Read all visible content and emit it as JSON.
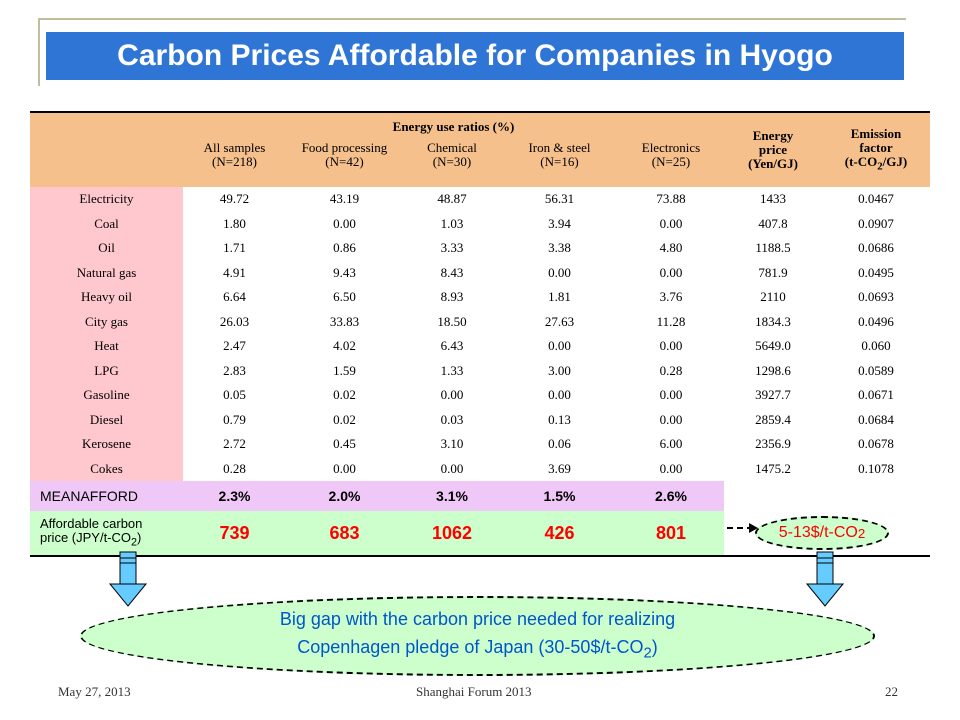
{
  "slide": {
    "title": "Carbon Prices Affordable for Companies in Hyogo"
  },
  "table": {
    "group_header": "Energy use ratios (%)",
    "columns": [
      {
        "line1": "All samples",
        "line2": "(N=218)"
      },
      {
        "line1": "Food processing",
        "line2": "(N=42)"
      },
      {
        "line1": "Chemical",
        "line2": "(N=30)"
      },
      {
        "line1": "Iron & steel",
        "line2": "(N=16)"
      },
      {
        "line1": "Electronics",
        "line2": "(N=25)"
      }
    ],
    "energy_price_header": {
      "line1": "Energy",
      "line2": "price",
      "line3": "(Yen/GJ)"
    },
    "emission_header": {
      "line1": "Emission",
      "line2": "factor",
      "line3a": "(t-CO",
      "sub": "2",
      "line3b": "/GJ)"
    },
    "rows": [
      {
        "label": "Electricity",
        "values": [
          "49.72",
          "43.19",
          "48.87",
          "56.31",
          "73.88"
        ],
        "price": "1433",
        "factor": "0.0467"
      },
      {
        "label": "Coal",
        "values": [
          "1.80",
          "0.00",
          "1.03",
          "3.94",
          "0.00"
        ],
        "price": "407.8",
        "factor": "0.0907"
      },
      {
        "label": "Oil",
        "values": [
          "1.71",
          "0.86",
          "3.33",
          "3.38",
          "4.80"
        ],
        "price": "1188.5",
        "factor": "0.0686"
      },
      {
        "label": "Natural gas",
        "values": [
          "4.91",
          "9.43",
          "8.43",
          "0.00",
          "0.00"
        ],
        "price": "781.9",
        "factor": "0.0495"
      },
      {
        "label": "Heavy oil",
        "values": [
          "6.64",
          "6.50",
          "8.93",
          "1.81",
          "3.76"
        ],
        "price": "2110",
        "factor": "0.0693"
      },
      {
        "label": "City gas",
        "values": [
          "26.03",
          "33.83",
          "18.50",
          "27.63",
          "11.28"
        ],
        "price": "1834.3",
        "factor": "0.0496"
      },
      {
        "label": "Heat",
        "values": [
          "2.47",
          "4.02",
          "6.43",
          "0.00",
          "0.00"
        ],
        "price": "5649.0",
        "factor": "0.060"
      },
      {
        "label": "LPG",
        "values": [
          "2.83",
          "1.59",
          "1.33",
          "3.00",
          "0.28"
        ],
        "price": "1298.6",
        "factor": "0.0589"
      },
      {
        "label": "Gasoline",
        "values": [
          "0.05",
          "0.02",
          "0.00",
          "0.00",
          "0.00"
        ],
        "price": "3927.7",
        "factor": "0.0671"
      },
      {
        "label": "Diesel",
        "values": [
          "0.79",
          "0.02",
          "0.03",
          "0.13",
          "0.00"
        ],
        "price": "2859.4",
        "factor": "0.0684"
      },
      {
        "label": "Kerosene",
        "values": [
          "2.72",
          "0.45",
          "3.10",
          "0.06",
          "6.00"
        ],
        "price": "2356.9",
        "factor": "0.0678"
      },
      {
        "label": "Cokes",
        "values": [
          "0.28",
          "0.00",
          "0.00",
          "3.69",
          "0.00"
        ],
        "price": "1475.2",
        "factor": "0.1078"
      }
    ],
    "mean_row": {
      "label": "MEANAFFORD",
      "values": [
        "2.3%",
        "2.0%",
        "3.1%",
        "1.5%",
        "2.6%"
      ]
    },
    "afford_row": {
      "label_line1": "Affordable carbon",
      "label_line2a": "price (JPY/t-CO",
      "label_sub": "2",
      "label_line2b": ")",
      "values": [
        "739",
        "683",
        "1062",
        "426",
        "801"
      ]
    }
  },
  "callout": {
    "text": "5-13$/t-CO",
    "sub": "2"
  },
  "gap_note": {
    "line1": "Big gap with the carbon price needed for realizing",
    "line2a": "Copenhagen pledge of Japan (30-50$/t-CO",
    "line2_sub": "2",
    "line2b": ")"
  },
  "footer": {
    "date": "May 27, 2013",
    "event": "Shanghai Forum 2013",
    "page": "22"
  },
  "colors": {
    "title_bg": "#2f75d6",
    "header_bg": "#f5c08c",
    "row_label_bg": "#ffc7ce",
    "mean_bg": "#f0c8f8",
    "afford_bg": "#ccffcc",
    "highlight_text": "#ff0000",
    "note_text": "#0055cc",
    "arrow_fill": "#66ccff"
  },
  "icons": [
    "down-arrow-icon",
    "dashed-arrow-icon"
  ]
}
